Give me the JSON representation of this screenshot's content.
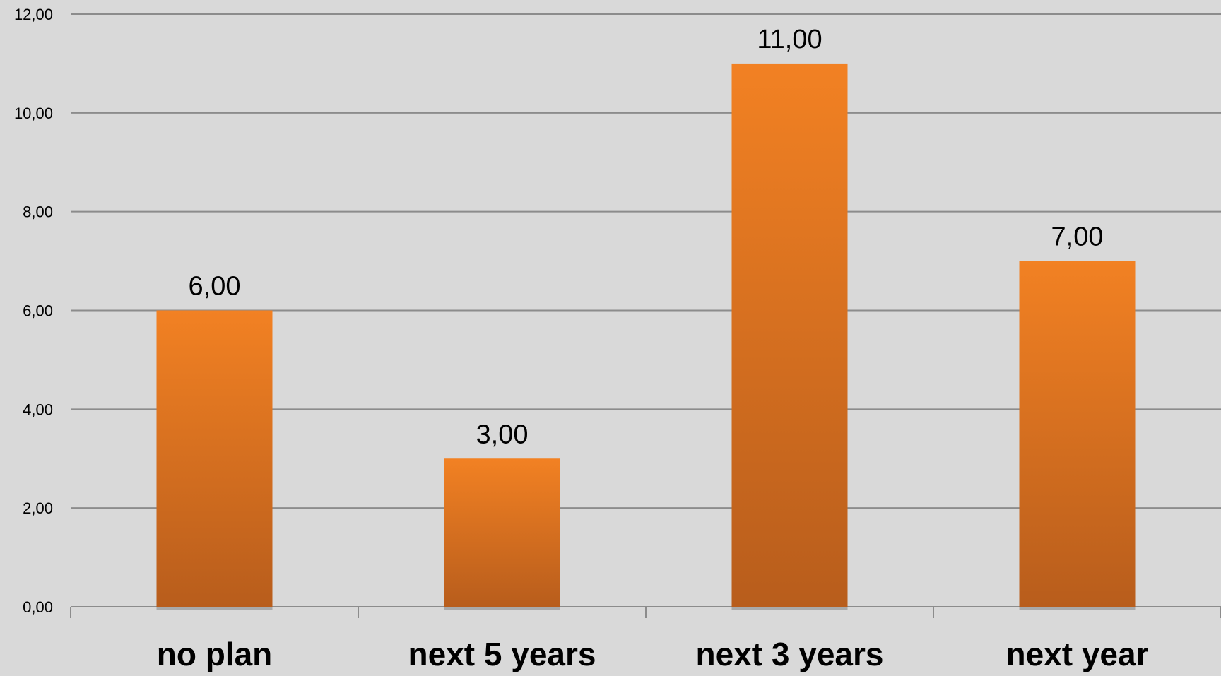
{
  "chart_data": {
    "type": "bar",
    "title": "",
    "xlabel": "",
    "ylabel": "",
    "categories": [
      "no plan",
      "next 5 years",
      "next 3 years",
      "next year"
    ],
    "values": [
      6,
      3,
      11,
      7
    ],
    "data_labels": [
      "6,00",
      "3,00",
      "11,00",
      "7,00"
    ],
    "ylim": [
      0,
      12
    ],
    "y_ticks": [
      0,
      2,
      4,
      6,
      8,
      10,
      12
    ],
    "y_tick_labels": [
      "0,00",
      "2,00",
      "4,00",
      "6,00",
      "8,00",
      "10,00",
      "12,00"
    ],
    "grid": true,
    "legend": "none",
    "colors": {
      "bar_top": "#f28123",
      "bar_bottom": "#b85d1c",
      "background": "#d9d9d9",
      "grid": "#8c8c8c"
    }
  }
}
